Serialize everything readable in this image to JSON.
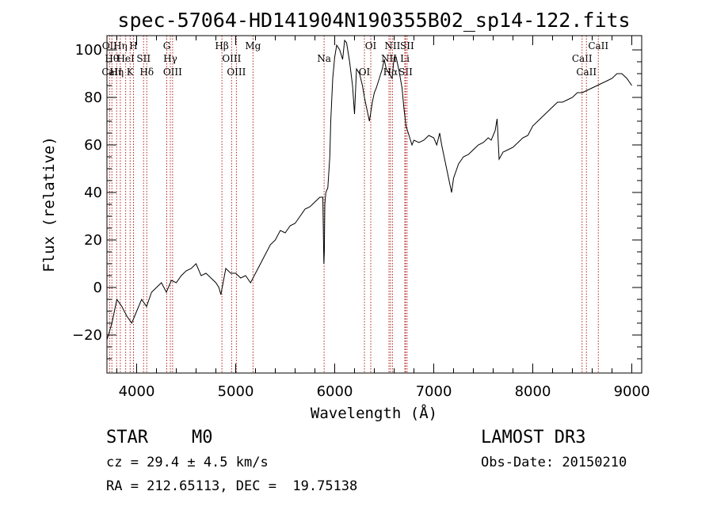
{
  "chart_data": {
    "type": "line",
    "title": "spec-57064-HD141904N190355B02_sp14-122.fits",
    "xlabel": "Wavelength (Å)",
    "ylabel": "Flux (relative)",
    "xlim": [
      3700,
      9100
    ],
    "ylim": [
      -36,
      106
    ],
    "xticks": [
      4000,
      5000,
      6000,
      7000,
      8000,
      9000
    ],
    "yticks": [
      -20,
      0,
      20,
      40,
      60,
      80,
      100
    ],
    "series": [
      {
        "color": "#000000",
        "x": [
          3700,
          3750,
          3800,
          3850,
          3900,
          3950,
          4000,
          4050,
          4100,
          4150,
          4200,
          4250,
          4300,
          4350,
          4400,
          4450,
          4500,
          4550,
          4600,
          4650,
          4700,
          4750,
          4800,
          4830,
          4850,
          4900,
          4950,
          5000,
          5050,
          5100,
          5150,
          5200,
          5250,
          5300,
          5350,
          5400,
          5450,
          5500,
          5550,
          5600,
          5650,
          5700,
          5750,
          5800,
          5850,
          5880,
          5890,
          5895,
          5900,
          5910,
          5930,
          5950,
          5960,
          5980,
          6000,
          6020,
          6050,
          6080,
          6100,
          6120,
          6150,
          6180,
          6200,
          6220,
          6250,
          6280,
          6300,
          6320,
          6350,
          6380,
          6400,
          6420,
          6450,
          6480,
          6500,
          6520,
          6550,
          6580,
          6600,
          6620,
          6650,
          6680,
          6700,
          6720,
          6750,
          6780,
          6800,
          6850,
          6900,
          6950,
          7000,
          7030,
          7060,
          7080,
          7100,
          7120,
          7140,
          7160,
          7180,
          7200,
          7250,
          7300,
          7350,
          7400,
          7450,
          7500,
          7550,
          7580,
          7600,
          7620,
          7640,
          7660,
          7700,
          7750,
          7800,
          7850,
          7900,
          7950,
          8000,
          8050,
          8100,
          8150,
          8200,
          8250,
          8300,
          8350,
          8400,
          8450,
          8500,
          8550,
          8600,
          8650,
          8700,
          8750,
          8800,
          8850,
          8900,
          8950,
          9000
        ],
        "y": [
          -22,
          -15,
          -5,
          -8,
          -12,
          -15,
          -10,
          -5,
          -8,
          -2,
          0,
          2,
          -2,
          3,
          2,
          5,
          7,
          8,
          10,
          5,
          6,
          4,
          2,
          0,
          -3,
          8,
          6,
          6,
          4,
          5,
          2,
          6,
          10,
          14,
          18,
          20,
          24,
          23,
          26,
          27,
          30,
          33,
          34,
          36,
          38,
          38,
          10,
          15,
          35,
          40,
          42,
          55,
          70,
          88,
          97,
          102,
          100,
          96,
          104,
          103,
          95,
          85,
          73,
          92,
          90,
          85,
          80,
          76,
          70,
          78,
          82,
          84,
          88,
          92,
          96,
          92,
          90,
          88,
          97,
          97,
          91,
          84,
          75,
          68,
          64,
          60,
          62,
          61,
          62,
          64,
          63,
          60,
          65,
          60,
          56,
          52,
          48,
          44,
          40,
          46,
          52,
          55,
          56,
          58,
          60,
          61,
          63,
          62,
          64,
          66,
          71,
          54,
          57,
          58,
          59,
          61,
          63,
          64,
          68,
          70,
          72,
          74,
          76,
          78,
          78,
          79,
          80,
          82,
          82,
          83,
          84,
          85,
          86,
          87,
          88,
          90,
          90,
          88,
          85
        ]
      }
    ],
    "line_markers": [
      {
        "wavelength": 3727,
        "labels": [
          "OII"
        ]
      },
      {
        "wavelength": 3750,
        "labels": [
          "Hθ",
          "CaII"
        ]
      },
      {
        "wavelength": 3798,
        "labels": [
          "Hη"
        ]
      },
      {
        "wavelength": 3835,
        "labels": [
          "Hη"
        ]
      },
      {
        "wavelength": 3889,
        "labels": [
          "HeI"
        ]
      },
      {
        "wavelength": 3934,
        "labels": [
          "K"
        ]
      },
      {
        "wavelength": 3968,
        "labels": [
          "H"
        ]
      },
      {
        "wavelength": 4070,
        "labels": [
          "SII"
        ]
      },
      {
        "wavelength": 4102,
        "labels": [
          "Hδ"
        ]
      },
      {
        "wavelength": 4304,
        "labels": [
          "G"
        ]
      },
      {
        "wavelength": 4340,
        "labels": [
          "Hγ"
        ]
      },
      {
        "wavelength": 4363,
        "labels": [
          "OIII"
        ]
      },
      {
        "wavelength": 4861,
        "labels": [
          "Hβ"
        ]
      },
      {
        "wavelength": 4959,
        "labels": [
          "OIII"
        ]
      },
      {
        "wavelength": 5007,
        "labels": [
          "OIII"
        ]
      },
      {
        "wavelength": 5175,
        "labels": [
          "Mg"
        ]
      },
      {
        "wavelength": 5893,
        "labels": [
          "Na"
        ]
      },
      {
        "wavelength": 6300,
        "labels": [
          "OI"
        ]
      },
      {
        "wavelength": 6364,
        "labels": [
          "OI"
        ]
      },
      {
        "wavelength": 6548,
        "labels": [
          "NII"
        ]
      },
      {
        "wavelength": 6563,
        "labels": [
          "Hα"
        ]
      },
      {
        "wavelength": 6583,
        "labels": [
          "NII"
        ]
      },
      {
        "wavelength": 6708,
        "labels": [
          "Li"
        ]
      },
      {
        "wavelength": 6716,
        "labels": [
          "SII"
        ]
      },
      {
        "wavelength": 6731,
        "labels": [
          "SII"
        ]
      },
      {
        "wavelength": 8498,
        "labels": [
          "CaII"
        ]
      },
      {
        "wavelength": 8542,
        "labels": [
          "CaII"
        ]
      },
      {
        "wavelength": 8662,
        "labels": [
          "CaII"
        ]
      }
    ],
    "grid": false,
    "legend": "none"
  },
  "info": {
    "star_type": "STAR",
    "subclass": "M0",
    "survey": "LAMOST DR3",
    "cz": "cz = 29.4 ± 4.5 km/s",
    "obs_date": "Obs-Date: 20150210",
    "radec": "RA = 212.65113, DEC =  19.75138"
  }
}
